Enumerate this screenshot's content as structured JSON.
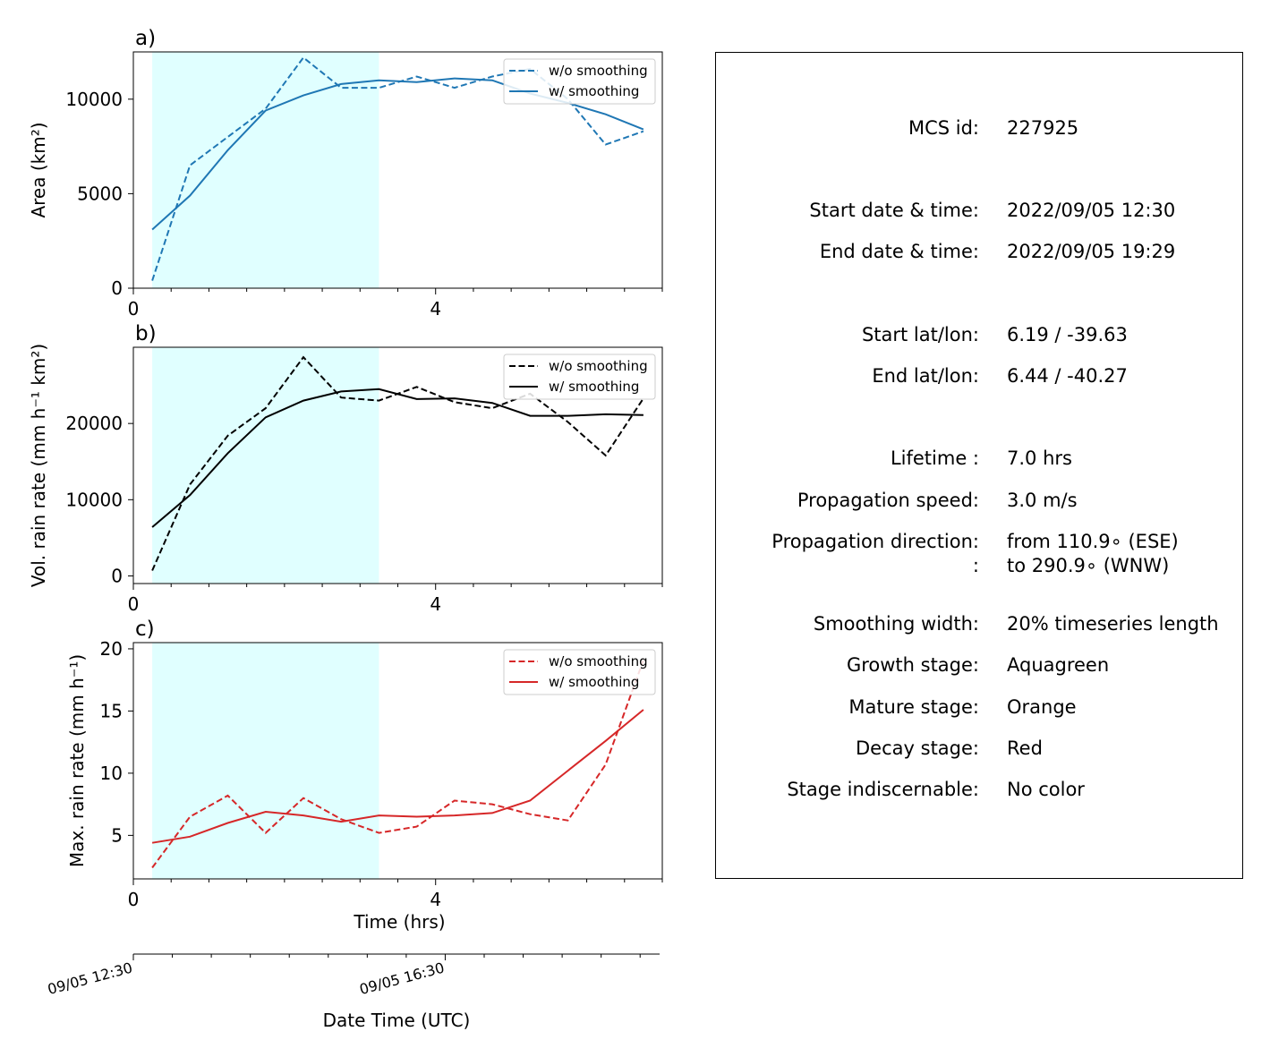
{
  "chart_data": [
    {
      "type": "line",
      "panel_label": "a)",
      "ylabel": "Area  (km²)",
      "xlim": [
        0,
        7
      ],
      "ylim": [
        0,
        12500
      ],
      "yticks": [
        0,
        5000,
        10000
      ],
      "xtick_labels": [
        "0",
        "4"
      ],
      "stage_shading": {
        "color": "#e0ffff",
        "range": [
          0.25,
          3.25
        ]
      },
      "legend": "top-right",
      "series": [
        {
          "name": "w/o smoothing",
          "style": "dashed",
          "color": "#1f77b4",
          "x": [
            0.25,
            0.75,
            1.25,
            1.75,
            2.25,
            2.75,
            3.25,
            3.75,
            4.25,
            4.75,
            5.25,
            5.75,
            6.25,
            6.75
          ],
          "y": [
            400,
            6500,
            8000,
            9500,
            12200,
            10600,
            10600,
            11200,
            10600,
            11200,
            11600,
            10000,
            7600,
            8300
          ]
        },
        {
          "name": "w/ smoothing",
          "style": "solid",
          "color": "#1f77b4",
          "x": [
            0.25,
            0.75,
            1.25,
            1.75,
            2.25,
            2.75,
            3.25,
            3.75,
            4.25,
            4.75,
            5.25,
            5.75,
            6.25,
            6.75
          ],
          "y": [
            3100,
            4900,
            7300,
            9400,
            10200,
            10800,
            11000,
            10900,
            11100,
            11000,
            10300,
            9800,
            9200,
            8400
          ]
        }
      ]
    },
    {
      "type": "line",
      "panel_label": "b)",
      "ylabel": "Vol. rain rate (mm h⁻¹ km²)",
      "xlim": [
        0,
        7
      ],
      "ylim": [
        -1000,
        30000
      ],
      "yticks": [
        0,
        10000,
        20000
      ],
      "xtick_labels": [
        "0",
        "4"
      ],
      "stage_shading": {
        "color": "#e0ffff",
        "range": [
          0.25,
          3.25
        ]
      },
      "legend": "top-right",
      "series": [
        {
          "name": "w/o smoothing",
          "style": "dashed",
          "color": "#000000",
          "x": [
            0.25,
            0.75,
            1.25,
            1.75,
            2.25,
            2.75,
            3.25,
            3.75,
            4.25,
            4.75,
            5.25,
            5.75,
            6.25,
            6.75
          ],
          "y": [
            700,
            12000,
            18400,
            22000,
            28700,
            23400,
            23000,
            24800,
            22800,
            22000,
            23900,
            20200,
            15800,
            23300
          ]
        },
        {
          "name": "w/ smoothing",
          "style": "solid",
          "color": "#000000",
          "x": [
            0.25,
            0.75,
            1.25,
            1.75,
            2.25,
            2.75,
            3.25,
            3.75,
            4.25,
            4.75,
            5.25,
            5.75,
            6.25,
            6.75
          ],
          "y": [
            6400,
            10600,
            16100,
            20800,
            23000,
            24200,
            24500,
            23200,
            23300,
            22700,
            21000,
            21000,
            21200,
            21100
          ]
        }
      ]
    },
    {
      "type": "line",
      "panel_label": "c)",
      "ylabel": "Max. rain rate  (mm h⁻¹)",
      "xlabel": "Time (hrs)",
      "xlim": [
        0,
        7
      ],
      "ylim": [
        1.5,
        20.5
      ],
      "yticks": [
        5,
        10,
        15,
        20
      ],
      "xtick_labels": [
        "0",
        "4"
      ],
      "stage_shading": {
        "color": "#e0ffff",
        "range": [
          0.25,
          3.25
        ]
      },
      "legend": "top-right",
      "series": [
        {
          "name": "w/o smoothing",
          "style": "dashed",
          "color": "#d62728",
          "x": [
            0.25,
            0.75,
            1.25,
            1.75,
            2.25,
            2.75,
            3.25,
            3.75,
            4.25,
            4.75,
            5.25,
            5.75,
            6.25,
            6.75
          ],
          "y": [
            2.4,
            6.5,
            8.2,
            5.2,
            8.0,
            6.3,
            5.2,
            5.7,
            7.8,
            7.5,
            6.7,
            6.2,
            10.7,
            19.1
          ]
        },
        {
          "name": "w/ smoothing",
          "style": "solid",
          "color": "#d62728",
          "x": [
            0.25,
            0.75,
            1.25,
            1.75,
            2.25,
            2.75,
            3.25,
            3.75,
            4.25,
            4.75,
            5.25,
            5.75,
            6.25,
            6.75
          ],
          "y": [
            4.4,
            4.9,
            6.0,
            6.9,
            6.6,
            6.1,
            6.6,
            6.5,
            6.6,
            6.8,
            7.8,
            10.2,
            12.6,
            15.1
          ]
        }
      ],
      "secondary_xaxis": {
        "label": "Date Time (UTC)",
        "tick_labels": [
          "09/05 12:30",
          "09/05 16:30"
        ]
      }
    }
  ],
  "info_panel": {
    "rows": [
      {
        "label": "MCS id:",
        "value": "227925"
      },
      {
        "label": "Start date & time:",
        "value": "2022/09/05 12:30"
      },
      {
        "label": "End date & time:",
        "value": "2022/09/05 19:29"
      },
      {
        "label": "Start lat/lon:",
        "value": "6.19 / -39.63"
      },
      {
        "label": "End lat/lon:",
        "value": "6.44 / -40.27"
      },
      {
        "label": "Lifetime :",
        "value": "7.0 hrs"
      },
      {
        "label": "Propagation speed:",
        "value": "3.0 m/s"
      },
      {
        "label": "Propagation direction:",
        "value": "from 110.9∘ (ESE)"
      },
      {
        "label": ":",
        "value": "to   290.9∘ (WNW)"
      },
      {
        "label": "Smoothing width:",
        "value": "20% timeseries length"
      },
      {
        "label": "Growth stage:",
        "value": "Aquagreen"
      },
      {
        "label": "Mature stage:",
        "value": "Orange"
      },
      {
        "label": "Decay stage:",
        "value": "Red"
      },
      {
        "label": "Stage indiscernable:",
        "value": "No color"
      }
    ]
  }
}
